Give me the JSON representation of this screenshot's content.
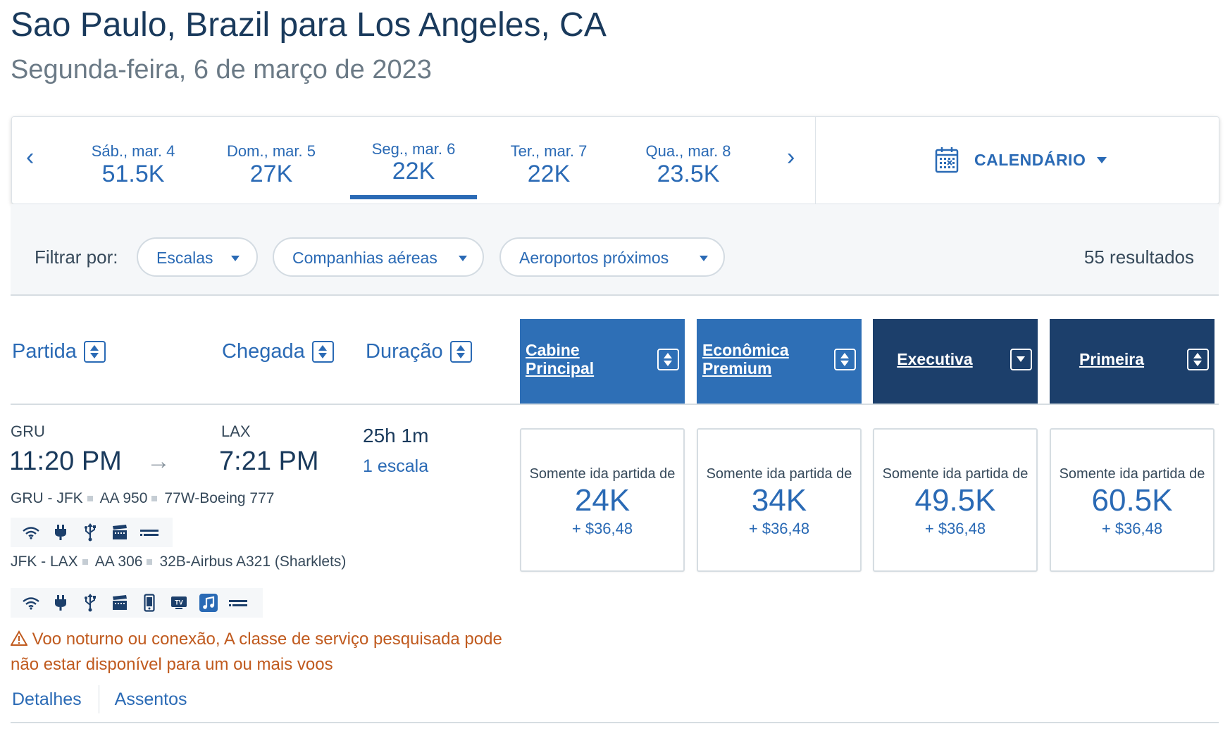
{
  "header": {
    "title": "Sao Paulo, Brazil para Los Angeles, CA",
    "date": "Segunda-feira, 6 de março de 2023"
  },
  "datebar": {
    "prev_icon": "chevron-left-icon",
    "next_icon": "chevron-right-icon",
    "days": [
      {
        "label": "Sáb., mar. 4",
        "value": "51.5K"
      },
      {
        "label": "Dom., mar. 5",
        "value": "27K"
      },
      {
        "label": "Seg., mar. 6",
        "value": "22K",
        "selected": true
      },
      {
        "label": "Ter., mar. 7",
        "value": "22K"
      },
      {
        "label": "Qua., mar. 8",
        "value": "23.5K"
      }
    ],
    "calendar_label": "CALENDÁRIO"
  },
  "filters": {
    "label": "Filtrar por:",
    "pills": [
      "Escalas",
      "Companhias aéreas",
      "Aeroportos próximos"
    ],
    "results": "55 resultados"
  },
  "sort": {
    "departure": "Partida",
    "arrival": "Chegada",
    "duration": "Duração"
  },
  "cabins": [
    {
      "line1": "Cabine",
      "line2": "Principal"
    },
    {
      "line1": "Econômica",
      "line2": "Premium"
    },
    {
      "line1": "Executiva"
    },
    {
      "line1": "Primeira"
    }
  ],
  "flight": {
    "origin": "GRU",
    "destination": "LAX",
    "depart_time": "11:20 PM",
    "arrive_time": "7:21 PM",
    "duration": "25h 1m",
    "stops": "1 escala",
    "segments": [
      {
        "route": "GRU - JFK",
        "flight": "AA 950",
        "aircraft": "77W-Boeing 777",
        "amenities": [
          "wifi-icon",
          "power-outlet-icon",
          "usb-icon",
          "entertainment-icon",
          "lie-flat-seat-icon"
        ]
      },
      {
        "route": "JFK - LAX",
        "flight": "AA 306",
        "aircraft": "32B-Airbus A321 (Sharklets)",
        "amenities": [
          "wifi-icon",
          "power-outlet-icon",
          "usb-icon",
          "entertainment-icon",
          "mobile-device-icon",
          "tv-icon",
          "music-icon",
          "lie-flat-seat-icon"
        ]
      }
    ],
    "warning": "Voo noturno ou conexão, A classe de serviço pesquisada pode não estar disponível para um ou mais voos",
    "links": {
      "details": "Detalhes",
      "seats": "Assentos"
    },
    "prices": [
      {
        "from": "Somente ida partida de",
        "miles": "24K",
        "tax": "+ $36,48"
      },
      {
        "from": "Somente ida partida de",
        "miles": "34K",
        "tax": "+ $36,48"
      },
      {
        "from": "Somente ida partida de",
        "miles": "49.5K",
        "tax": "+ $36,48"
      },
      {
        "from": "Somente ida partida de",
        "miles": "60.5K",
        "tax": "+ $36,48"
      }
    ]
  },
  "colors": {
    "link_blue": "#2a6ab5",
    "cabin_light": "#2e6fb6",
    "cabin_dark": "#1c3f6b",
    "warning": "#c05a1e"
  }
}
